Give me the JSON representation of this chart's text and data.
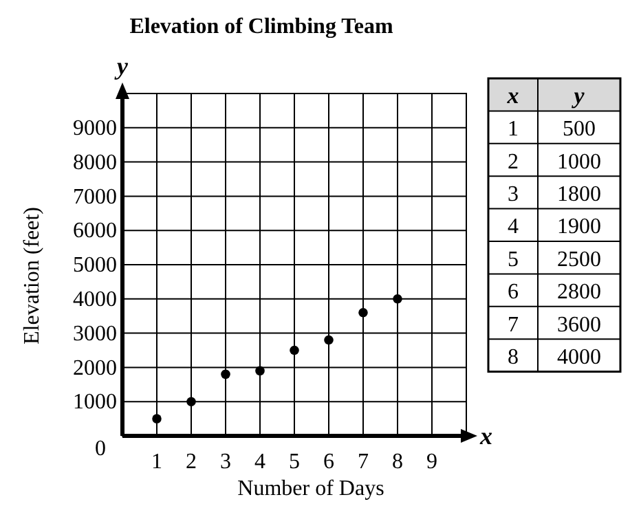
{
  "chart_data": [
    {
      "type": "scatter",
      "title": "Elevation of Climbing Team",
      "xlabel": "Number of Days",
      "ylabel": "Elevation (feet)",
      "annotations": [
        "x",
        "y"
      ],
      "x": [
        1,
        2,
        3,
        4,
        5,
        6,
        7,
        8
      ],
      "values": [
        500,
        1000,
        1800,
        1900,
        2500,
        2800,
        3600,
        4000
      ],
      "color": "#000000",
      "marker": "circle",
      "grid": true,
      "xlim": [
        0,
        10
      ],
      "xticks": [
        1,
        2,
        3,
        4,
        5,
        6,
        7,
        8,
        9
      ],
      "ylim": [
        0,
        10000
      ],
      "yticks": [
        0,
        1000,
        2000,
        3000,
        4000,
        5000,
        6000,
        7000,
        8000,
        9000
      ]
    },
    {
      "type": "heatmap",
      "ylabel": "x",
      "categories": [
        "y"
      ],
      "data_labels": true,
      "y_categories": [
        "1",
        "2",
        "3",
        "4",
        "5",
        "6",
        "7",
        "8"
      ],
      "cells": [
        [
          500
        ],
        [
          1000
        ],
        [
          1800
        ],
        [
          1900
        ],
        [
          2500
        ],
        [
          2800
        ],
        [
          3600
        ],
        [
          4000
        ]
      ]
    }
  ]
}
